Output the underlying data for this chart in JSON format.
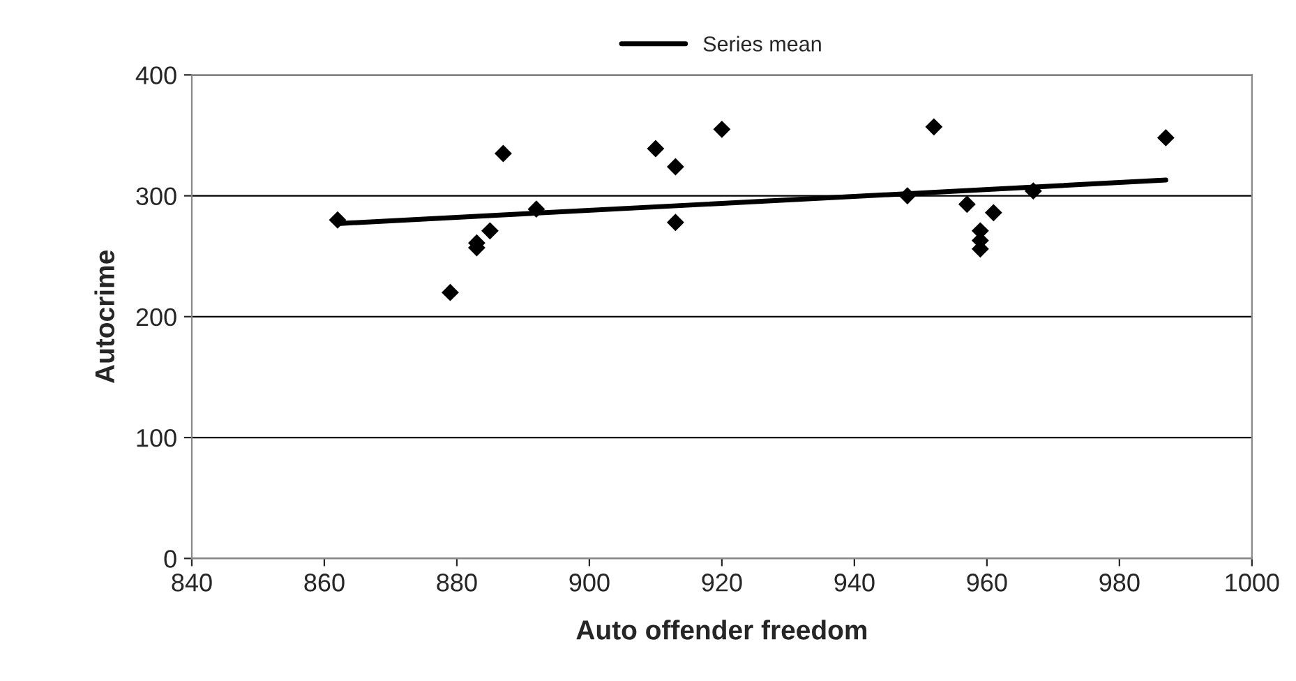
{
  "chart_data": {
    "type": "scatter",
    "xlabel": "Auto offender freedom",
    "ylabel": "Autocrime",
    "xlim": [
      840,
      1000
    ],
    "xticks": [
      840,
      860,
      880,
      900,
      920,
      940,
      960,
      980,
      1000
    ],
    "ylim": [
      0,
      400
    ],
    "yticks": [
      0,
      100,
      200,
      300,
      400
    ],
    "grid": "y",
    "legend": "top",
    "series": [
      {
        "marker": "diamond",
        "color": "#000000",
        "x": [
          862,
          879,
          883,
          883,
          885,
          887,
          892,
          910,
          913,
          913,
          920,
          948,
          952,
          957,
          959,
          959,
          959,
          961,
          967,
          987
        ],
        "values": [
          280,
          220,
          261,
          257,
          271,
          335,
          289,
          339,
          324,
          278,
          355,
          300,
          357,
          293,
          271,
          263,
          256,
          286,
          304,
          348
        ]
      },
      {
        "type": "line",
        "name": "Series mean",
        "color": "#000000",
        "line_style": "solid",
        "x": [
          862,
          987
        ],
        "values": [
          277,
          313
        ]
      }
    ]
  }
}
